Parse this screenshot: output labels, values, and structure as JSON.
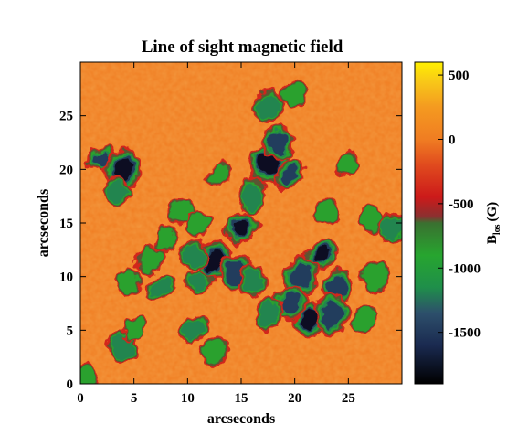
{
  "chart_data": {
    "type": "heatmap",
    "title": "Line of sight magnetic field",
    "xlabel": "arcseconds",
    "ylabel": "arcseconds",
    "xlim": [
      0,
      30
    ],
    "ylim": [
      0,
      30
    ],
    "x_ticks": [
      0,
      5,
      10,
      15,
      20,
      25
    ],
    "y_ticks": [
      0,
      5,
      10,
      15,
      20,
      25
    ],
    "colorbar": {
      "label": "B",
      "label_subscript": "los",
      "label_unit": "(G)",
      "range": [
        -1900,
        600
      ],
      "ticks": [
        500,
        0,
        -500,
        -1000,
        -1500
      ],
      "colormap_stops": [
        {
          "value": -1900,
          "color": "#000000"
        },
        {
          "value": -1600,
          "color": "#1a2a50"
        },
        {
          "value": -1350,
          "color": "#2d4f6b"
        },
        {
          "value": -1150,
          "color": "#1f8f4a"
        },
        {
          "value": -900,
          "color": "#27a52f"
        },
        {
          "value": -650,
          "color": "#3a7030"
        },
        {
          "value": -600,
          "color": "#8a3030"
        },
        {
          "value": -450,
          "color": "#cc1a1a"
        },
        {
          "value": -200,
          "color": "#e04a1e"
        },
        {
          "value": 0,
          "color": "#f07d22"
        },
        {
          "value": 250,
          "color": "#f49a20"
        },
        {
          "value": 450,
          "color": "#f8c818"
        },
        {
          "value": 600,
          "color": "#fff000"
        }
      ]
    },
    "negative_field_regions": [
      {
        "x": 2.0,
        "y": 21.0,
        "strength": -1400
      },
      {
        "x": 4.0,
        "y": 20.0,
        "strength": -1700
      },
      {
        "x": 3.5,
        "y": 18.0,
        "strength": -1100
      },
      {
        "x": 15.0,
        "y": 14.5,
        "strength": -1700
      },
      {
        "x": 17.5,
        "y": 20.5,
        "strength": -1800
      },
      {
        "x": 18.5,
        "y": 22.5,
        "strength": -1500
      },
      {
        "x": 19.5,
        "y": 19.5,
        "strength": -1400
      },
      {
        "x": 16.0,
        "y": 17.5,
        "strength": -1200
      },
      {
        "x": 12.5,
        "y": 11.5,
        "strength": -1800
      },
      {
        "x": 10.5,
        "y": 12.0,
        "strength": -1300
      },
      {
        "x": 11.0,
        "y": 9.5,
        "strength": -1200
      },
      {
        "x": 14.5,
        "y": 10.5,
        "strength": -1500
      },
      {
        "x": 16.0,
        "y": 9.5,
        "strength": -1300
      },
      {
        "x": 22.5,
        "y": 12.0,
        "strength": -1800
      },
      {
        "x": 20.5,
        "y": 10.0,
        "strength": -1500
      },
      {
        "x": 24.0,
        "y": 9.0,
        "strength": -1400
      },
      {
        "x": 21.5,
        "y": 6.0,
        "strength": -1800
      },
      {
        "x": 23.5,
        "y": 6.5,
        "strength": -1500
      },
      {
        "x": 19.5,
        "y": 7.5,
        "strength": -1400
      },
      {
        "x": 17.5,
        "y": 6.5,
        "strength": -1300
      },
      {
        "x": 7.5,
        "y": 9.0,
        "strength": -1100
      },
      {
        "x": 6.5,
        "y": 11.5,
        "strength": -1000
      },
      {
        "x": 4.5,
        "y": 9.5,
        "strength": -1000
      },
      {
        "x": 10.5,
        "y": 5.0,
        "strength": -1200
      },
      {
        "x": 12.5,
        "y": 3.0,
        "strength": -1000
      },
      {
        "x": 4.0,
        "y": 3.5,
        "strength": -1300
      },
      {
        "x": 5.0,
        "y": 5.0,
        "strength": -900
      },
      {
        "x": 0.5,
        "y": 0.5,
        "strength": -1000
      },
      {
        "x": 9.5,
        "y": 16.0,
        "strength": -900
      },
      {
        "x": 11.0,
        "y": 15.0,
        "strength": -900
      },
      {
        "x": 13.0,
        "y": 19.5,
        "strength": -900
      },
      {
        "x": 29.0,
        "y": 14.5,
        "strength": -1100
      },
      {
        "x": 27.0,
        "y": 15.5,
        "strength": -900
      },
      {
        "x": 25.0,
        "y": 20.5,
        "strength": -1000
      },
      {
        "x": 17.5,
        "y": 26.0,
        "strength": -1200
      },
      {
        "x": 20.0,
        "y": 27.0,
        "strength": -1000
      },
      {
        "x": 26.5,
        "y": 6.0,
        "strength": -900
      },
      {
        "x": 27.5,
        "y": 10.0,
        "strength": -900
      },
      {
        "x": 23.0,
        "y": 16.0,
        "strength": -1000
      },
      {
        "x": 8.0,
        "y": 13.5,
        "strength": -900
      }
    ]
  }
}
